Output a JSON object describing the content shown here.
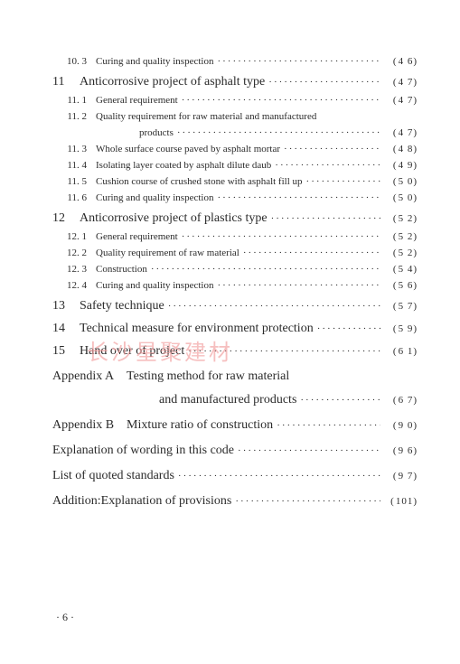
{
  "colors": {
    "text": "#2b2b2b",
    "bg": "#ffffff",
    "watermark": "#f29d9d"
  },
  "toc": [
    {
      "type": "l2",
      "num": "10. 3",
      "title": "Curing and quality inspection",
      "page": "4 6"
    },
    {
      "type": "l1",
      "num": "11",
      "title": "Anticorrosive project of asphalt type",
      "page": "4 7"
    },
    {
      "type": "l2",
      "num": "11. 1",
      "title": "General requirement",
      "page": "4 7"
    },
    {
      "type": "l2-wrap",
      "num": "11. 2",
      "title": "Quality requirement for raw material and manufactured",
      "cont": "products",
      "page": "4 7"
    },
    {
      "type": "l2",
      "num": "11. 3",
      "title": "Whole surface course paved by asphalt mortar",
      "page": "4 8"
    },
    {
      "type": "l2",
      "num": "11. 4",
      "title": "Isolating layer coated by asphalt dilute daub",
      "page": "4 9"
    },
    {
      "type": "l2",
      "num": "11. 5",
      "title": "Cushion course of crushed stone with asphalt fill up",
      "page": "5 0"
    },
    {
      "type": "l2",
      "num": "11. 6",
      "title": "Curing and quality inspection",
      "page": "5 0"
    },
    {
      "type": "l1",
      "num": "12",
      "title": "Anticorrosive project of plastics type",
      "page": "5 2"
    },
    {
      "type": "l2",
      "num": "12. 1",
      "title": "General requirement",
      "page": "5 2"
    },
    {
      "type": "l2",
      "num": "12. 2",
      "title": "Quality requirement of raw material",
      "page": "5 2"
    },
    {
      "type": "l2",
      "num": "12. 3",
      "title": "Construction",
      "page": "5 4"
    },
    {
      "type": "l2",
      "num": "12. 4",
      "title": "Curing and quality inspection",
      "page": "5 6"
    },
    {
      "type": "l1",
      "num": "13",
      "title": "Safety technique",
      "page": "5 7"
    },
    {
      "type": "l1",
      "num": "14",
      "title": "Technical measure for environment protection",
      "page": "5 9"
    },
    {
      "type": "l1",
      "num": "15",
      "title": "Hand over of project",
      "page": "6 1"
    },
    {
      "type": "misc-wrap",
      "title": "Appendix A Testing method for raw material",
      "cont": "and manufactured products",
      "page": "6 7"
    },
    {
      "type": "misc",
      "title": "Appendix B Mixture ratio of construction",
      "page": "9 0"
    },
    {
      "type": "misc",
      "title": "Explanation of wording in this code",
      "page": "9 6"
    },
    {
      "type": "misc",
      "title": "List of quoted standards",
      "page": "9 7"
    },
    {
      "type": "misc",
      "title": "Addition:Explanation of provisions",
      "page": "101"
    }
  ],
  "watermark": "长沙星聚建材",
  "footer": "· 6 ·"
}
